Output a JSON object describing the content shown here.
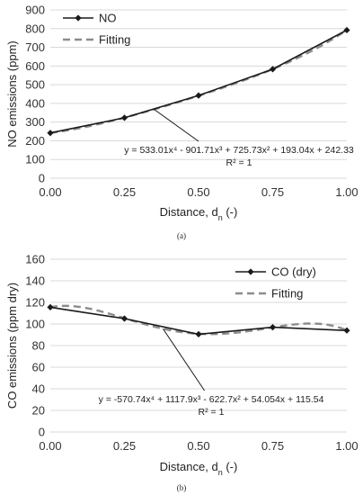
{
  "chart_data": [
    {
      "type": "line",
      "caption": "(a)",
      "xlabel": "Distance, d",
      "xlabel_sub": "n",
      "xlabel_suffix": " (-)",
      "ylabel": "NO emissions (ppm)",
      "xlim": [
        0,
        1
      ],
      "ylim": [
        0,
        900
      ],
      "x_ticks": [
        "0.00",
        "0.25",
        "0.50",
        "0.75",
        "1.00"
      ],
      "y_ticks": [
        "0",
        "100",
        "200",
        "300",
        "400",
        "500",
        "600",
        "700",
        "800",
        "900"
      ],
      "grid": true,
      "legend_position": "top-left",
      "series": [
        {
          "name": "NO",
          "style": "line-diamond",
          "color": "#1a1a1a",
          "x": [
            0,
            0.25,
            0.5,
            0.75,
            1.0
          ],
          "values": [
            242,
            323,
            442,
            583,
            792
          ]
        },
        {
          "name": "Fitting",
          "style": "dashed",
          "color": "#8c8c8c",
          "poly": [
            533.01,
            -901.71,
            725.73,
            193.04,
            242.33
          ]
        }
      ],
      "equation": "y = 533.01x⁴ - 901.71x³ + 725.73x² + 193.04x + 242.33",
      "r2": "R² = 1",
      "annotation_x": 0.5,
      "annotation_target_x": 0.35
    },
    {
      "type": "line",
      "caption": "(b)",
      "xlabel": "Distance, d",
      "xlabel_sub": "n",
      "xlabel_suffix": " (-)",
      "ylabel": "CO emissions (ppm dry)",
      "xlim": [
        0,
        1
      ],
      "ylim": [
        0,
        160
      ],
      "x_ticks": [
        "0.00",
        "0.25",
        "0.50",
        "0.75",
        "1.00"
      ],
      "y_ticks": [
        "0",
        "20",
        "40",
        "60",
        "80",
        "100",
        "120",
        "140",
        "160"
      ],
      "grid": true,
      "legend_position": "top-right",
      "series": [
        {
          "name": "CO (dry)",
          "style": "line-diamond",
          "color": "#1a1a1a",
          "x": [
            0,
            0.25,
            0.5,
            0.75,
            1.0
          ],
          "values": [
            115.5,
            105,
            90.5,
            97,
            94
          ]
        },
        {
          "name": "Fitting",
          "style": "dashed",
          "color": "#8c8c8c",
          "poly": [
            -570.74,
            1117.9,
            -622.7,
            54.054,
            115.54
          ]
        }
      ],
      "equation": "y = -570.74x⁴ + 1117.9x³ - 622.7x² + 54.054x + 115.54",
      "r2": "R² = 1",
      "annotation_x": 0.52,
      "annotation_target_x": 0.38
    }
  ]
}
